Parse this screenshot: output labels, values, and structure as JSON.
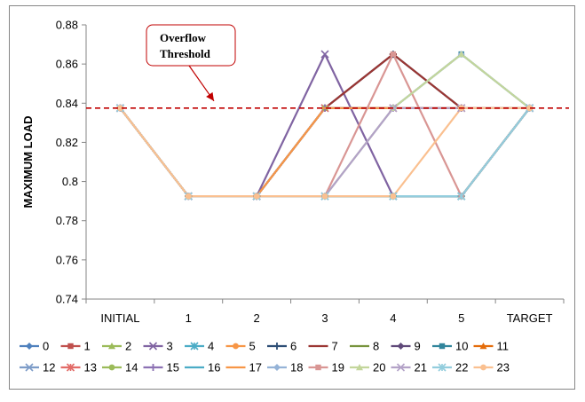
{
  "chart_data": {
    "type": "line",
    "title": "",
    "xlabel": "",
    "ylabel": "MAXIMUM LOAD",
    "categories": [
      "INITIAL",
      "1",
      "2",
      "3",
      "4",
      "5",
      "TARGET"
    ],
    "ylim": [
      0.74,
      0.88
    ],
    "yticks": [
      "0.74",
      "0.76",
      "0.78",
      "0.8",
      "0.82",
      "0.84",
      "0.86",
      "0.88"
    ],
    "grid": "none",
    "legend_position": "bottom",
    "threshold": {
      "value": 0.8375,
      "label_line1": "Overflow",
      "label_line2": "Threshold",
      "color": "#c00000",
      "style": "dashed"
    },
    "series": [
      {
        "name": "0",
        "color": "#4f81bd",
        "marker": "diamond",
        "values": [
          0.8375,
          0.7925,
          0.7925,
          0.7925,
          0.7925,
          0.7925,
          0.8375
        ]
      },
      {
        "name": "1",
        "color": "#c0504d",
        "marker": "square",
        "values": [
          0.8375,
          0.7925,
          0.7925,
          0.7925,
          0.7925,
          0.7925,
          0.8375
        ]
      },
      {
        "name": "2",
        "color": "#9bbb59",
        "marker": "triangle",
        "values": [
          0.8375,
          0.7925,
          0.7925,
          0.7925,
          0.7925,
          0.7925,
          0.8375
        ]
      },
      {
        "name": "3",
        "color": "#8064a2",
        "marker": "x",
        "values": [
          0.8375,
          0.7925,
          0.7925,
          0.865,
          0.7925,
          0.7925,
          0.8375
        ]
      },
      {
        "name": "4",
        "color": "#4bacc6",
        "marker": "star",
        "values": [
          0.8375,
          0.7925,
          0.7925,
          0.7925,
          0.7925,
          0.7925,
          0.8375
        ]
      },
      {
        "name": "5",
        "color": "#f79646",
        "marker": "circle",
        "values": [
          0.8375,
          0.7925,
          0.7925,
          0.7925,
          0.7925,
          0.7925,
          0.8375
        ]
      },
      {
        "name": "6",
        "color": "#2c4d75",
        "marker": "plus",
        "values": [
          0.8375,
          0.7925,
          0.7925,
          0.8375,
          0.865,
          0.8375,
          0.8375
        ]
      },
      {
        "name": "7",
        "color": "#9b3633",
        "marker": "dash",
        "values": [
          0.8375,
          0.7925,
          0.7925,
          0.8375,
          0.865,
          0.8375,
          0.8375
        ]
      },
      {
        "name": "8",
        "color": "#77933c",
        "marker": "dash",
        "values": [
          0.8375,
          0.7925,
          0.7925,
          0.7925,
          0.7925,
          0.7925,
          0.8375
        ]
      },
      {
        "name": "9",
        "color": "#5f497a",
        "marker": "diamond",
        "values": [
          0.8375,
          0.7925,
          0.7925,
          0.7925,
          0.7925,
          0.7925,
          0.8375
        ]
      },
      {
        "name": "10",
        "color": "#31859c",
        "marker": "square",
        "values": [
          0.8375,
          0.7925,
          0.7925,
          0.8375,
          0.8375,
          0.865,
          0.8375
        ]
      },
      {
        "name": "11",
        "color": "#e46c0a",
        "marker": "triangle",
        "values": [
          0.8375,
          0.7925,
          0.7925,
          0.8375,
          0.8375,
          0.8375,
          0.8375
        ]
      },
      {
        "name": "12",
        "color": "#7d9cc8",
        "marker": "x",
        "values": [
          0.8375,
          0.7925,
          0.7925,
          0.8375,
          0.8375,
          0.8375,
          0.8375
        ]
      },
      {
        "name": "13",
        "color": "#e26b67",
        "marker": "star",
        "values": [
          0.8375,
          0.7925,
          0.7925,
          0.8375,
          0.8375,
          0.8375,
          0.8375
        ]
      },
      {
        "name": "14",
        "color": "#9bbb59",
        "marker": "circle",
        "values": [
          0.8375,
          0.7925,
          0.7925,
          0.8375,
          0.8375,
          0.8375,
          0.8375
        ]
      },
      {
        "name": "15",
        "color": "#8c71b3",
        "marker": "plus",
        "values": [
          0.8375,
          0.7925,
          0.7925,
          0.8375,
          0.8375,
          0.8375,
          0.8375
        ]
      },
      {
        "name": "16",
        "color": "#4bacc6",
        "marker": "dash",
        "values": [
          0.8375,
          0.7925,
          0.7925,
          0.7925,
          0.7925,
          0.7925,
          0.8375
        ]
      },
      {
        "name": "17",
        "color": "#f79646",
        "marker": "dash",
        "values": [
          0.8375,
          0.7925,
          0.7925,
          0.8375,
          0.8375,
          0.8375,
          0.8375
        ]
      },
      {
        "name": "18",
        "color": "#95b3d7",
        "marker": "diamond",
        "values": [
          0.8375,
          0.7925,
          0.7925,
          0.7925,
          0.8375,
          0.865,
          0.8375
        ]
      },
      {
        "name": "19",
        "color": "#d99694",
        "marker": "square",
        "values": [
          0.8375,
          0.7925,
          0.7925,
          0.7925,
          0.865,
          0.7925,
          0.8375
        ]
      },
      {
        "name": "20",
        "color": "#c3d69b",
        "marker": "triangle",
        "values": [
          0.8375,
          0.7925,
          0.7925,
          0.7925,
          0.8375,
          0.865,
          0.8375
        ]
      },
      {
        "name": "21",
        "color": "#b3a2c7",
        "marker": "x",
        "values": [
          0.8375,
          0.7925,
          0.7925,
          0.7925,
          0.8375,
          0.8375,
          0.8375
        ]
      },
      {
        "name": "22",
        "color": "#93cddd",
        "marker": "star",
        "values": [
          0.8375,
          0.7925,
          0.7925,
          0.7925,
          0.7925,
          0.7925,
          0.8375
        ]
      },
      {
        "name": "23",
        "color": "#fac090",
        "marker": "circle",
        "values": [
          0.8375,
          0.7925,
          0.7925,
          0.7925,
          0.7925,
          0.8375,
          0.8375
        ]
      }
    ]
  }
}
